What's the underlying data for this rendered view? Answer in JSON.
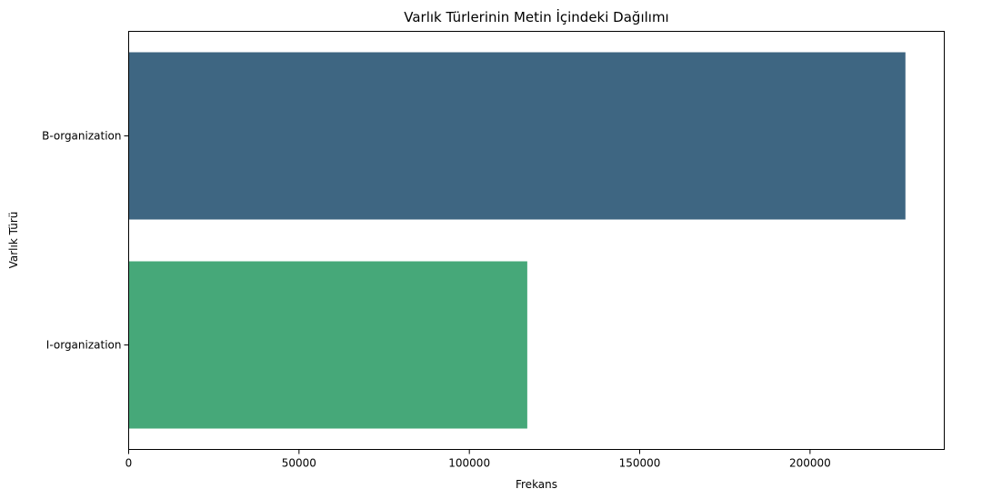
{
  "chart_data": {
    "type": "bar",
    "orientation": "horizontal",
    "title": "Varlık Türlerinin Metin İçindeki Dağılımı",
    "xlabel": "Frekans",
    "ylabel": "Varlık Türü",
    "categories": [
      "B-organization",
      "I-organization"
    ],
    "values": [
      228000,
      117000
    ],
    "colors": [
      "#3e6682",
      "#46a879"
    ],
    "xlim": [
      0,
      239400
    ],
    "xticks": [
      0,
      50000,
      100000,
      150000,
      200000
    ],
    "grid": false,
    "legend": "none"
  }
}
